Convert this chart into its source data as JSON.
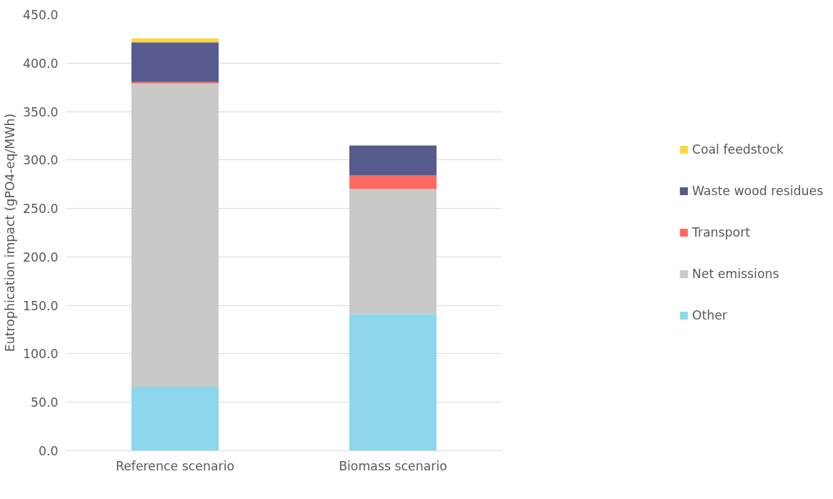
{
  "chart_data": {
    "type": "bar",
    "stacked": true,
    "ylabel": "Eutrophication impact (gPO4-eq/MWh)",
    "categories": [
      "Reference scenario",
      "Biomass scenario"
    ],
    "series": [
      {
        "name": "Other",
        "color": "#8dd7ec",
        "values": [
          66,
          141
        ]
      },
      {
        "name": "Net emissions",
        "color": "#c9c9c7",
        "values": [
          313,
          129
        ]
      },
      {
        "name": "Transport",
        "color": "#fe6a5f",
        "values": [
          1.5,
          14
        ]
      },
      {
        "name": "Waste wood residues",
        "color": "#575a8c",
        "values": [
          41,
          31
        ]
      },
      {
        "name": "Coal feedstock",
        "color": "#ffd640",
        "values": [
          4,
          0
        ]
      }
    ],
    "ylim": [
      0,
      450
    ],
    "yticks": [
      {
        "value": 0,
        "label": "0.0"
      },
      {
        "value": 50,
        "label": "50.0"
      },
      {
        "value": 100,
        "label": "100.0"
      },
      {
        "value": 150,
        "label": "150.0"
      },
      {
        "value": 200,
        "label": "200.0"
      },
      {
        "value": 250,
        "label": "250.0"
      },
      {
        "value": 300,
        "label": "300.0"
      },
      {
        "value": 350,
        "label": "350.0"
      },
      {
        "value": 400,
        "label": "400.0"
      },
      {
        "value": 450,
        "label": "450.0"
      }
    ],
    "grid": "y",
    "legend": "right"
  }
}
